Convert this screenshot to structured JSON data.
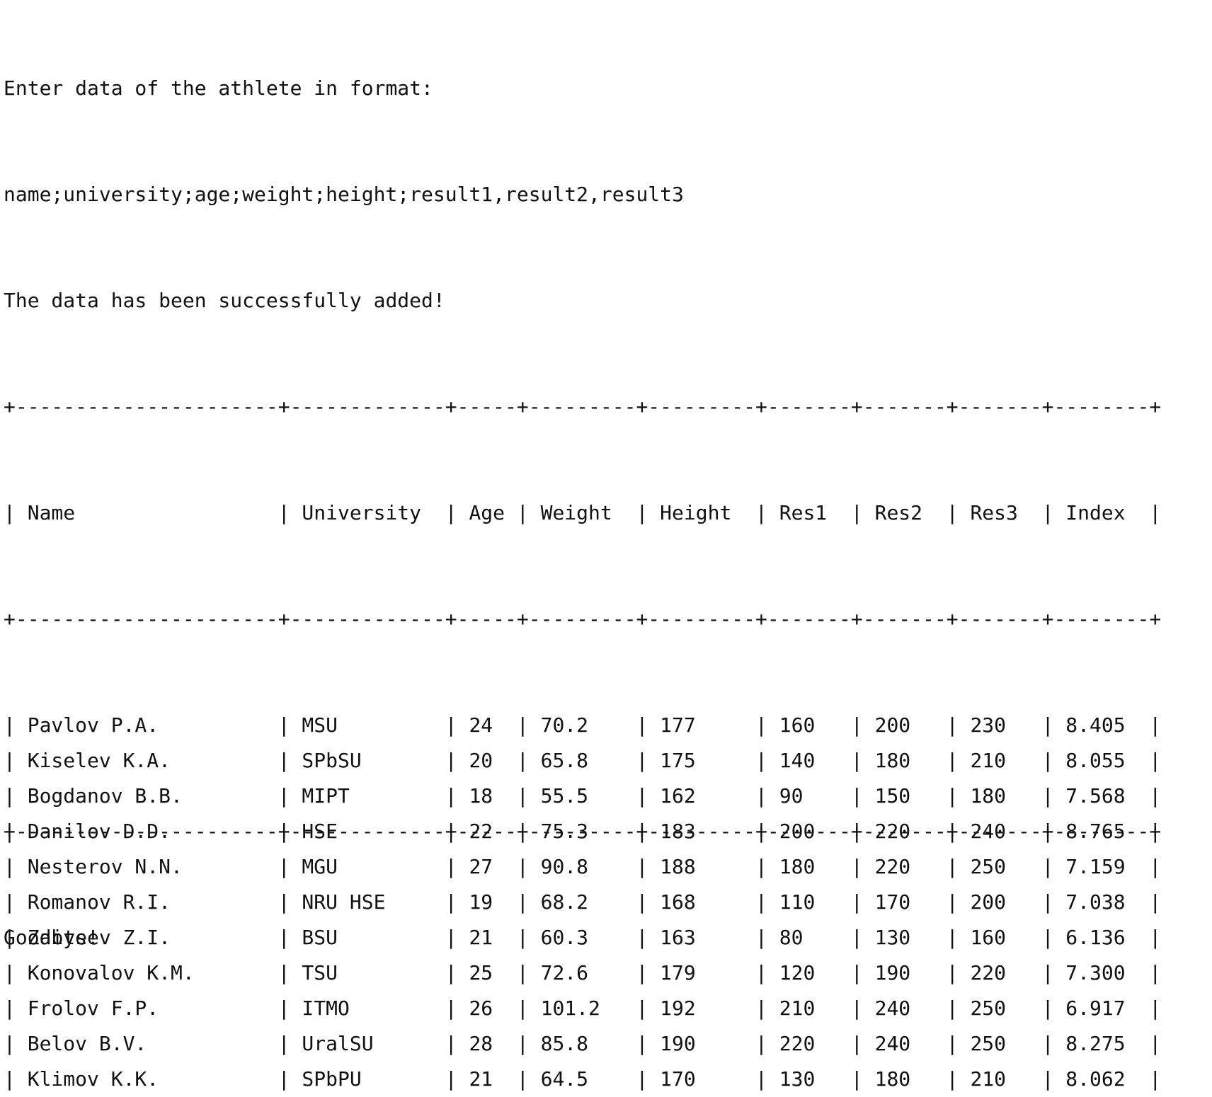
{
  "console": {
    "prompt_line_1": "Enter data of the athlete in format:",
    "prompt_line_2": "name;university;age;weight;height;result1,result2,result3",
    "success_message": "The data has been successfully added!",
    "goodbye_message": "Goodbye!"
  },
  "table": {
    "columns": [
      "Name",
      "University",
      "Age",
      "Weight",
      "Height",
      "Res1",
      "Res2",
      "Res3",
      "Index"
    ],
    "rows": [
      [
        "Pavlov P.A.",
        "MSU",
        "24",
        "70.2",
        "177",
        "160",
        "200",
        "230",
        "8.405"
      ],
      [
        "Kiselev K.A.",
        "SPbSU",
        "20",
        "65.8",
        "175",
        "140",
        "180",
        "210",
        "8.055"
      ],
      [
        "Bogdanov B.B.",
        "MIPT",
        "18",
        "55.5",
        "162",
        "90",
        "150",
        "180",
        "7.568"
      ],
      [
        "Danilov D.D.",
        "HSE",
        "22",
        "75.3",
        "183",
        "200",
        "220",
        "240",
        "8.765"
      ],
      [
        "Nesterov N.N.",
        "MGU",
        "27",
        "90.8",
        "188",
        "180",
        "220",
        "250",
        "7.159"
      ],
      [
        "Romanov R.I.",
        "NRU HSE",
        "19",
        "68.2",
        "168",
        "110",
        "170",
        "200",
        "7.038"
      ],
      [
        "Zaitsev Z.I.",
        "BSU",
        "21",
        "60.3",
        "163",
        "80",
        "130",
        "160",
        "6.136"
      ],
      [
        "Konovalov K.M.",
        "TSU",
        "25",
        "72.6",
        "179",
        "120",
        "190",
        "220",
        "7.300"
      ],
      [
        "Frolov F.P.",
        "ITMO",
        "26",
        "101.2",
        "192",
        "210",
        "240",
        "250",
        "6.917"
      ],
      [
        "Belov B.V.",
        "UralSU",
        "28",
        "85.8",
        "190",
        "220",
        "240",
        "250",
        "8.275"
      ],
      [
        "Klimov K.K.",
        "SPbPU",
        "21",
        "64.5",
        "170",
        "130",
        "180",
        "210",
        "8.062"
      ]
    ]
  }
}
